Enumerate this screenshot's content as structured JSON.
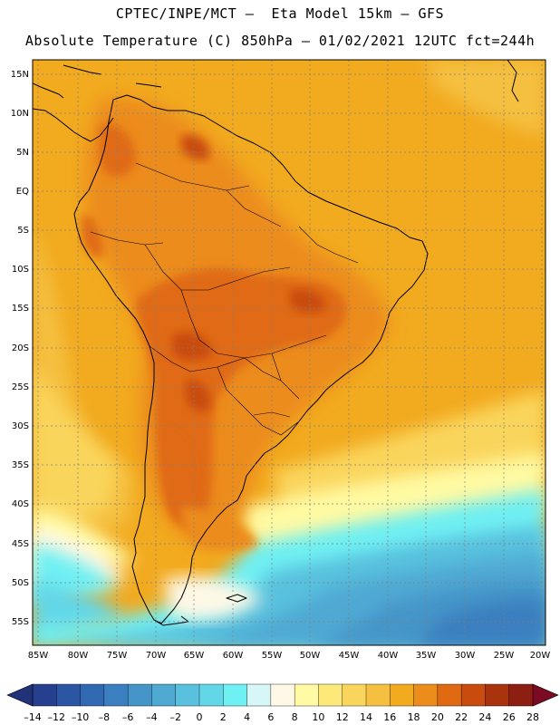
{
  "title_line1": "CPTEC/INPE/MCT –  Eta Model 15km – GFS",
  "title_line2": "Absolute Temperature (C) 850hPa – 01/02/2021 12UTC fct=244h",
  "lat_labels": [
    "15N",
    "10N",
    "5N",
    "EQ",
    "5S",
    "10S",
    "15S",
    "20S",
    "25S",
    "30S",
    "35S",
    "40S",
    "45S",
    "50S",
    "55S"
  ],
  "lon_labels": [
    "85W",
    "80W",
    "75W",
    "70W",
    "65W",
    "60W",
    "55W",
    "50W",
    "45W",
    "40W",
    "35W",
    "30W",
    "25W",
    "20W"
  ],
  "colorbar": {
    "labels": [
      "-14",
      "-12",
      "-10",
      "-8",
      "-6",
      "-4",
      "-2",
      "0",
      "2",
      "4",
      "6",
      "8",
      "10",
      "12",
      "14",
      "16",
      "18",
      "20",
      "22",
      "24",
      "26",
      "28"
    ],
    "colors": [
      "#26408f",
      "#2b56a3",
      "#3068b2",
      "#3b7fc0",
      "#4595c9",
      "#4fa9d3",
      "#59c1de",
      "#62d7e8",
      "#6ff0f3",
      "#d6f6f8",
      "#fff8e6",
      "#fffaa3",
      "#fde97a",
      "#fad55c",
      "#f5c040",
      "#f2aa1f",
      "#ec8c1a",
      "#e06a12",
      "#c94b0d",
      "#a8330d",
      "#8c1f12"
    ],
    "under_color": "#22327a",
    "over_color": "#7a0b22"
  }
}
